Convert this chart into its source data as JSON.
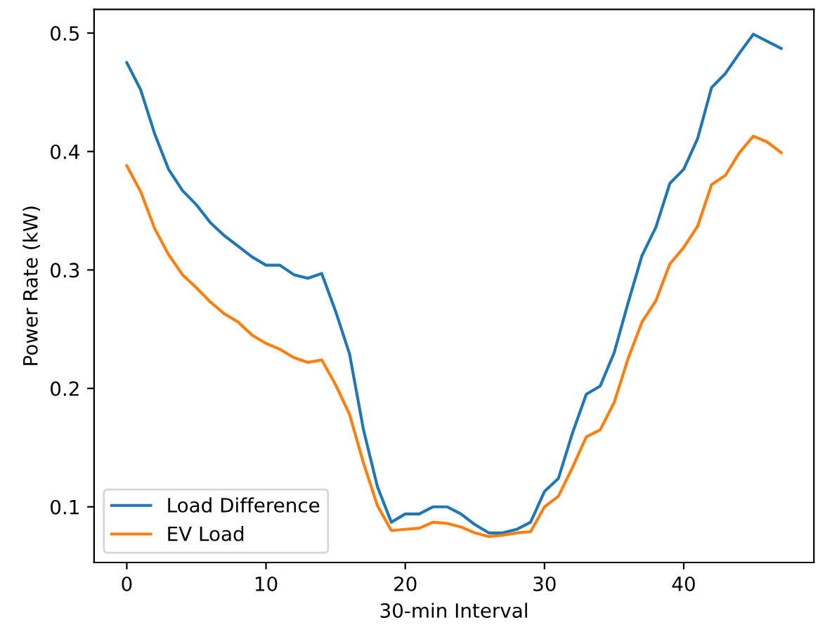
{
  "chart_data": {
    "type": "line",
    "xlabel": "30-min Interval",
    "ylabel": "Power Rate (kW)",
    "x": [
      0,
      1,
      2,
      3,
      4,
      5,
      6,
      7,
      8,
      9,
      10,
      11,
      12,
      13,
      14,
      15,
      16,
      17,
      18,
      19,
      20,
      21,
      22,
      23,
      24,
      25,
      26,
      27,
      28,
      29,
      30,
      31,
      32,
      33,
      34,
      35,
      36,
      37,
      38,
      39,
      40,
      41,
      42,
      43,
      44,
      45,
      46,
      47
    ],
    "series": [
      {
        "name": "Load Difference",
        "color": "#1f77b4",
        "values": [
          0.475,
          0.452,
          0.415,
          0.385,
          0.367,
          0.355,
          0.34,
          0.329,
          0.32,
          0.311,
          0.304,
          0.304,
          0.296,
          0.293,
          0.297,
          0.265,
          0.229,
          0.165,
          0.117,
          0.087,
          0.094,
          0.094,
          0.1,
          0.1,
          0.094,
          0.085,
          0.078,
          0.078,
          0.081,
          0.087,
          0.113,
          0.124,
          0.162,
          0.195,
          0.202,
          0.23,
          0.272,
          0.312,
          0.336,
          0.373,
          0.385,
          0.411,
          0.454,
          0.466,
          0.483,
          0.499,
          0.493,
          0.487
        ]
      },
      {
        "name": "EV Load",
        "color": "#ff7f0e",
        "values": [
          0.388,
          0.366,
          0.335,
          0.313,
          0.296,
          0.285,
          0.273,
          0.263,
          0.256,
          0.245,
          0.238,
          0.233,
          0.226,
          0.222,
          0.224,
          0.203,
          0.178,
          0.137,
          0.101,
          0.08,
          0.081,
          0.082,
          0.087,
          0.086,
          0.083,
          0.078,
          0.075,
          0.076,
          0.078,
          0.079,
          0.1,
          0.109,
          0.133,
          0.159,
          0.165,
          0.188,
          0.225,
          0.256,
          0.274,
          0.305,
          0.319,
          0.337,
          0.372,
          0.38,
          0.399,
          0.413,
          0.408,
          0.399
        ]
      }
    ],
    "xlim": [
      -2.35,
      49.35
    ],
    "ylim": [
      0.053,
      0.52
    ],
    "xticks": [
      0,
      10,
      20,
      30,
      40
    ],
    "yticks": [
      0.1,
      0.2,
      0.3,
      0.4,
      0.5
    ],
    "legend": "lower left",
    "grid": false,
    "marker": "none",
    "line_style": "solid"
  }
}
